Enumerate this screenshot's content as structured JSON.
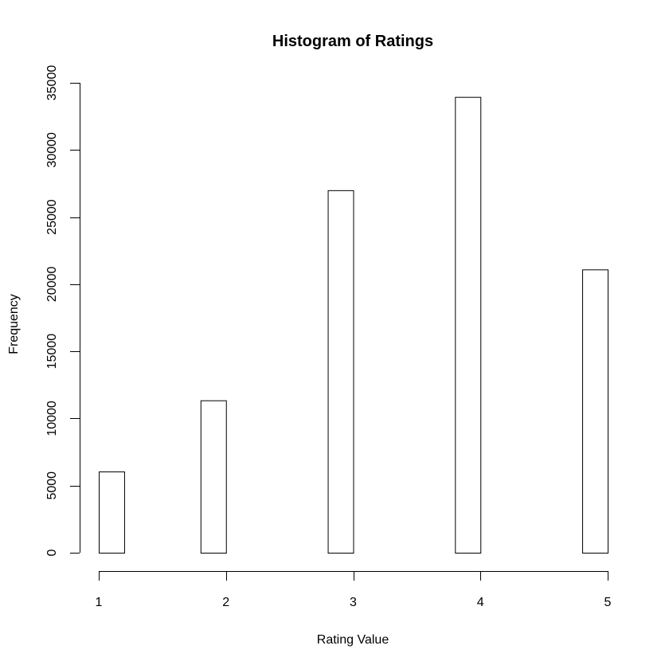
{
  "chart_data": {
    "type": "bar",
    "title": "Histogram of Ratings",
    "xlabel": "Rating Value",
    "ylabel": "Frequency",
    "bins": [
      {
        "x0": 1.0,
        "x1": 1.2,
        "count": 6050
      },
      {
        "x0": 1.2,
        "x1": 1.4,
        "count": 0
      },
      {
        "x0": 1.4,
        "x1": 1.6,
        "count": 0
      },
      {
        "x0": 1.6,
        "x1": 1.8,
        "count": 0
      },
      {
        "x0": 1.8,
        "x1": 2.0,
        "count": 11350
      },
      {
        "x0": 2.0,
        "x1": 2.2,
        "count": 0
      },
      {
        "x0": 2.2,
        "x1": 2.4,
        "count": 0
      },
      {
        "x0": 2.4,
        "x1": 2.6,
        "count": 0
      },
      {
        "x0": 2.6,
        "x1": 2.8,
        "count": 0
      },
      {
        "x0": 2.8,
        "x1": 3.0,
        "count": 27000
      },
      {
        "x0": 3.0,
        "x1": 3.2,
        "count": 0
      },
      {
        "x0": 3.2,
        "x1": 3.4,
        "count": 0
      },
      {
        "x0": 3.4,
        "x1": 3.6,
        "count": 0
      },
      {
        "x0": 3.6,
        "x1": 3.8,
        "count": 0
      },
      {
        "x0": 3.8,
        "x1": 4.0,
        "count": 33950
      },
      {
        "x0": 4.0,
        "x1": 4.2,
        "count": 0
      },
      {
        "x0": 4.2,
        "x1": 4.4,
        "count": 0
      },
      {
        "x0": 4.4,
        "x1": 4.6,
        "count": 0
      },
      {
        "x0": 4.6,
        "x1": 4.8,
        "count": 0
      },
      {
        "x0": 4.8,
        "x1": 5.0,
        "count": 21100
      }
    ],
    "xlim": [
      1,
      5
    ],
    "ylim": [
      0,
      35000
    ],
    "xticks": [
      1,
      2,
      3,
      4,
      5
    ],
    "yticks": [
      0,
      5000,
      10000,
      15000,
      20000,
      25000,
      30000,
      35000
    ],
    "grid": false,
    "legend": "none",
    "colors": {
      "bar_fill": "#ffffff",
      "bar_stroke": "#000000",
      "axis": "#000000"
    }
  }
}
